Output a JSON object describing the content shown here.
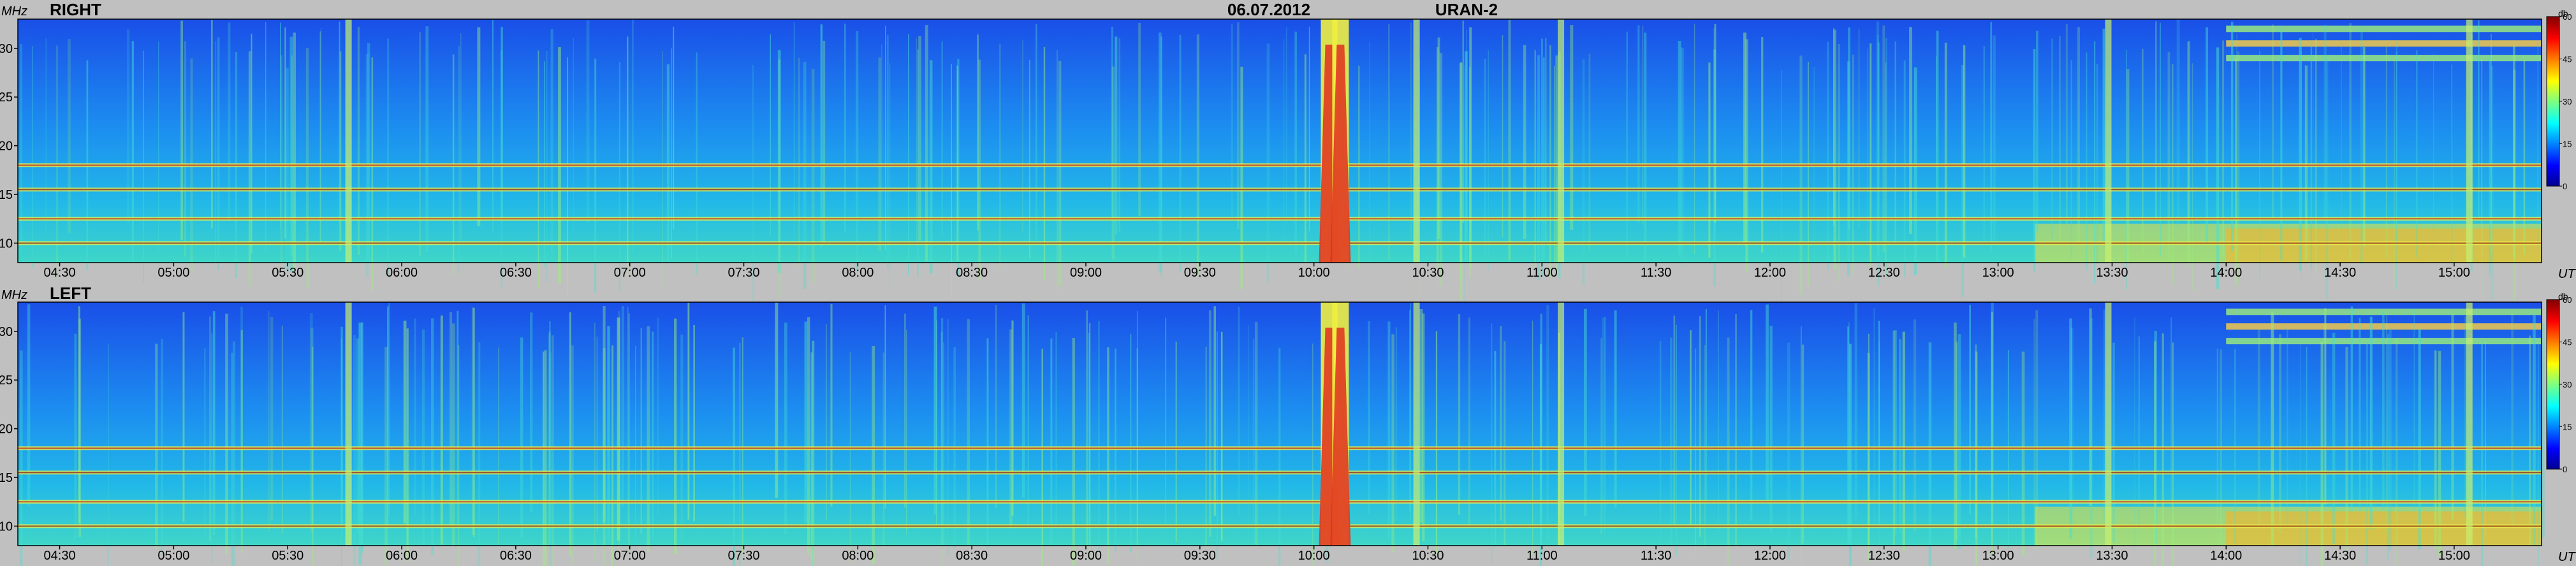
{
  "header": {
    "date": "06.07.2012",
    "station": "URAN-2"
  },
  "chart_data": [
    {
      "type": "heatmap",
      "panel_label": "RIGHT",
      "ylabel": "MHz",
      "xlabel": "UT",
      "x_ticks": [
        "04:30",
        "05:00",
        "05:30",
        "06:00",
        "06:30",
        "07:00",
        "07:30",
        "08:00",
        "08:30",
        "09:00",
        "09:30",
        "10:00",
        "10:30",
        "11:00",
        "11:30",
        "12:00",
        "12:30",
        "13:00",
        "13:30",
        "14:00",
        "14:30",
        "15:00"
      ],
      "y_ticks": [
        10,
        15,
        20,
        25,
        30
      ],
      "ylim": [
        8,
        33
      ],
      "xlim": [
        "04:19",
        "15:23"
      ],
      "colorbar": {
        "unit": "db",
        "ticks": [
          0,
          15,
          30,
          45,
          60
        ],
        "range": [
          0,
          60
        ]
      },
      "features": {
        "type_iii_bursts_UT": [
          "05:46",
          "10:04",
          "10:07",
          "10:27",
          "11:05",
          "13:29",
          "15:04"
        ],
        "interference_bands_MHz": [
          10,
          12.5,
          15.5,
          18
        ],
        "high_band_activity_after_UT": "14:00"
      }
    },
    {
      "type": "heatmap",
      "panel_label": "LEFT",
      "ylabel": "MHz",
      "xlabel": "UT",
      "x_ticks": [
        "04:30",
        "05:00",
        "05:30",
        "06:00",
        "06:30",
        "07:00",
        "07:30",
        "08:00",
        "08:30",
        "09:00",
        "09:30",
        "10:00",
        "10:30",
        "11:00",
        "11:30",
        "12:00",
        "12:30",
        "13:00",
        "13:30",
        "14:00",
        "14:30",
        "15:00"
      ],
      "y_ticks": [
        10,
        15,
        20,
        25,
        30
      ],
      "ylim": [
        8,
        33
      ],
      "xlim": [
        "04:19",
        "15:23"
      ],
      "colorbar": {
        "unit": "db",
        "ticks": [
          0,
          15,
          30,
          45,
          60
        ],
        "range": [
          0,
          60
        ]
      },
      "features": {
        "type_iii_bursts_UT": [
          "05:46",
          "10:04",
          "10:07",
          "10:27",
          "11:05",
          "13:29",
          "15:04"
        ],
        "interference_bands_MHz": [
          10,
          12.5,
          15.5,
          18
        ],
        "high_band_activity_after_UT": "14:00"
      }
    }
  ]
}
